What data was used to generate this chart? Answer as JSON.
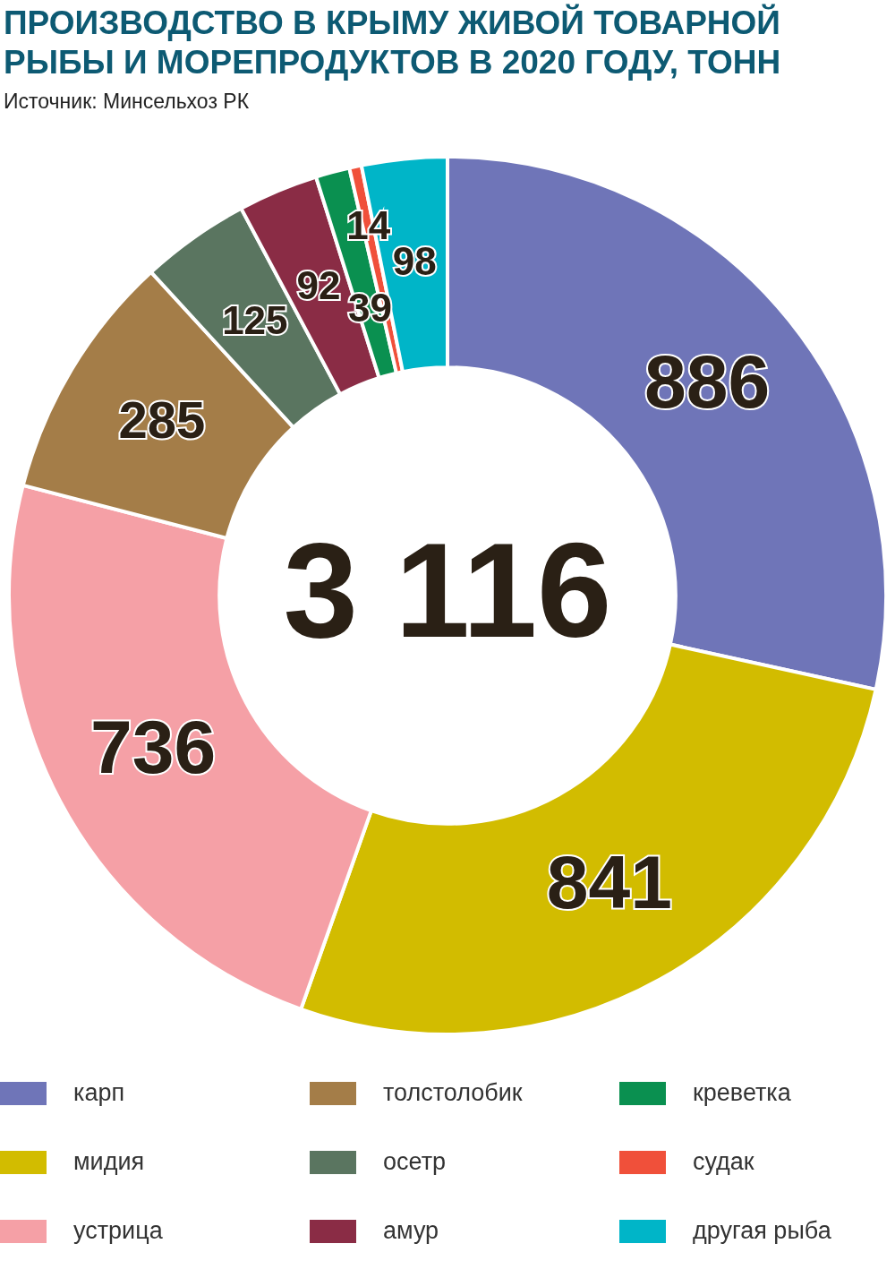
{
  "chart_data": {
    "type": "donut",
    "title": "ПРОИЗВОДСТВО В КРЫМУ ЖИВОЙ ТОВАРНОЙ РЫБЫ И МОРЕПРОДУКТОВ В 2020 ГОДУ, ТОНН",
    "subtitle": "Источник: Минсельхоз РК",
    "categories": [
      "карп",
      "мидия",
      "устрица",
      "толстолобик",
      "осетр",
      "амур",
      "креветка",
      "судак",
      "другая рыба"
    ],
    "values": [
      886,
      841,
      736,
      285,
      125,
      92,
      39,
      14,
      98
    ],
    "colors": [
      "#6f75b8",
      "#d2bc00",
      "#f5a0a6",
      "#a47d48",
      "#5a7560",
      "#8a2c45",
      "#0a9050",
      "#f0503a",
      "#00b5c8"
    ],
    "data_labels": true,
    "legend": "bottom",
    "annotations": [
      "3 116"
    ]
  }
}
